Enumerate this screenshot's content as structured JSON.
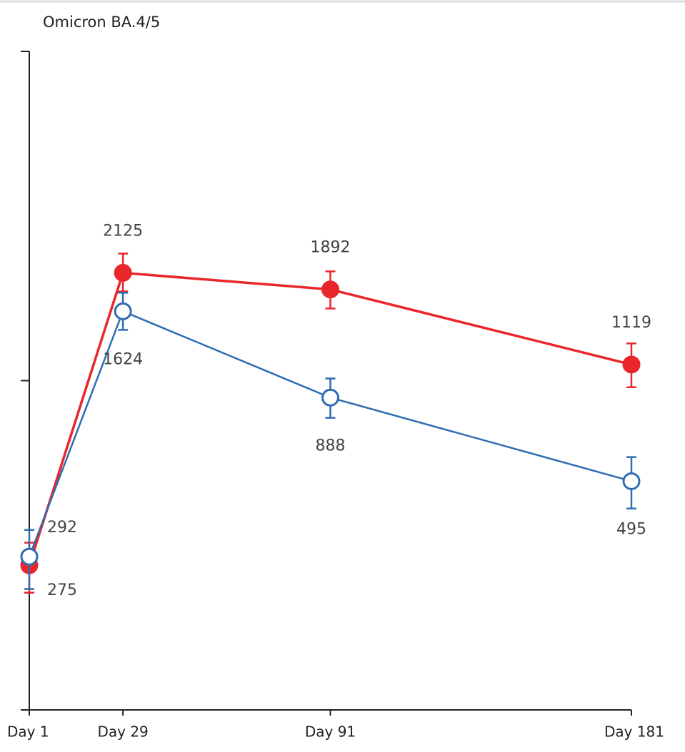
{
  "chart_data": {
    "type": "line",
    "title": "Omicron BA.4/5",
    "x": [
      1,
      29,
      91,
      181
    ],
    "xlim": [
      1,
      181
    ],
    "xticks": [
      {
        "value": 1,
        "label": "Day 1"
      },
      {
        "value": 29,
        "label": "Day 29"
      },
      {
        "value": 91,
        "label": "Day 91"
      },
      {
        "value": 181,
        "label": "Day 181"
      }
    ],
    "ylim": [
      100,
      10000
    ],
    "yticks": [
      100,
      1000,
      10000
    ],
    "log_y": true,
    "series": [
      {
        "color": "#e8262b",
        "filled": true,
        "values": [
          275,
          2125,
          1892,
          1119
        ],
        "lower": [
          227,
          1866,
          1656,
          955
        ],
        "upper": [
          322,
          2432,
          2147,
          1297
        ]
      },
      {
        "color": "#2e6db4",
        "filled": false,
        "values": [
          292,
          1624,
          888,
          495
        ],
        "lower": [
          233,
          1426,
          771,
          409
        ],
        "upper": [
          352,
          1849,
          1015,
          586
        ]
      }
    ]
  }
}
